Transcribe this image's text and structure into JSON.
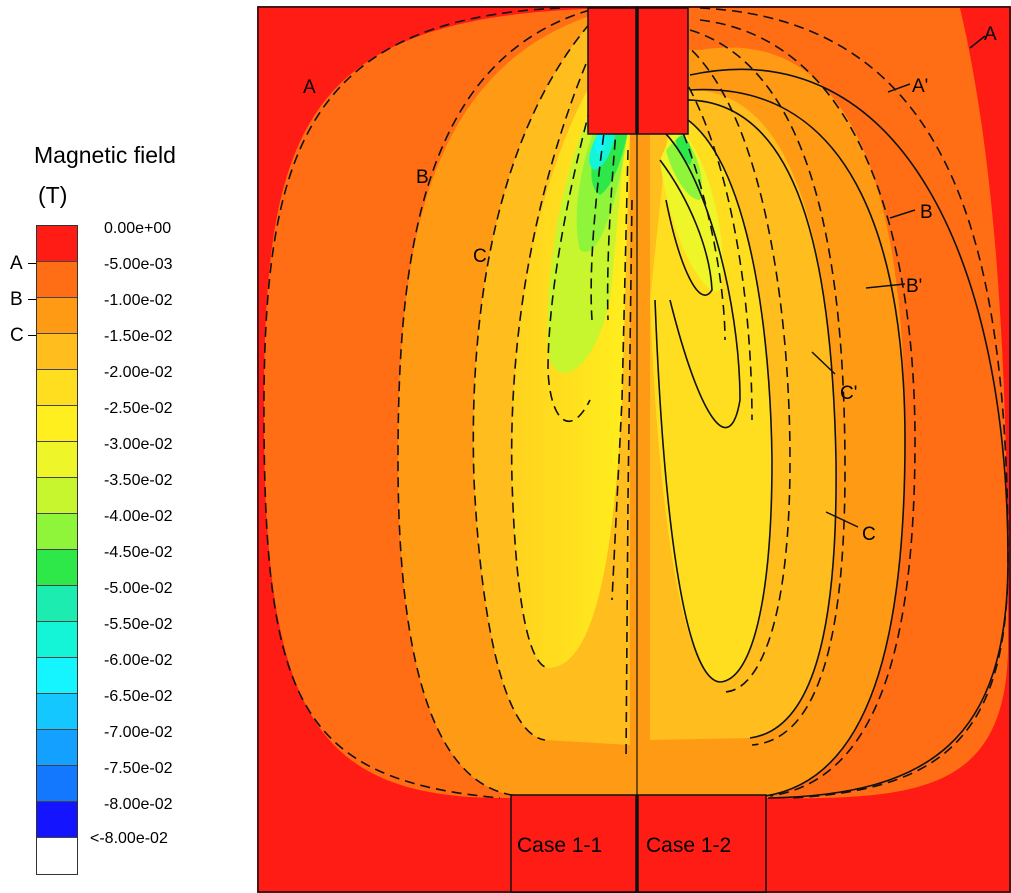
{
  "legend": {
    "title": "Magnetic field",
    "unit": "(T)",
    "ticks": [
      "0.00e+00",
      "-5.00e-03",
      "-1.00e-02",
      "-1.50e-02",
      "-2.00e-02",
      "-2.50e-02",
      "-3.00e-02",
      "-3.50e-02",
      "-4.00e-02",
      "-4.50e-02",
      "-5.00e-02",
      "-5.50e-02",
      "-6.00e-02",
      "-6.50e-02",
      "-7.00e-02",
      "-7.50e-02",
      "-8.00e-02",
      "<-8.00e-02"
    ],
    "colors": [
      "#ff1c14",
      "#ff6e14",
      "#ff9a14",
      "#ffbd1e",
      "#ffde20",
      "#ffef1e",
      "#eef528",
      "#c7f52e",
      "#8ef53a",
      "#2ee84a",
      "#1cecb0",
      "#14f5d8",
      "#14f5ff",
      "#14c8ff",
      "#14a0ff",
      "#1478ff",
      "#1414ff",
      "#ffffff"
    ],
    "contour_letters": [
      "A",
      "B",
      "C"
    ]
  },
  "plot": {
    "cases": [
      "Case 1-1",
      "Case 1-2"
    ],
    "labels_left": [
      "A",
      "B",
      "C"
    ],
    "labels_right": [
      "A",
      "A'",
      "B",
      "B'",
      "C'",
      "C"
    ]
  }
}
